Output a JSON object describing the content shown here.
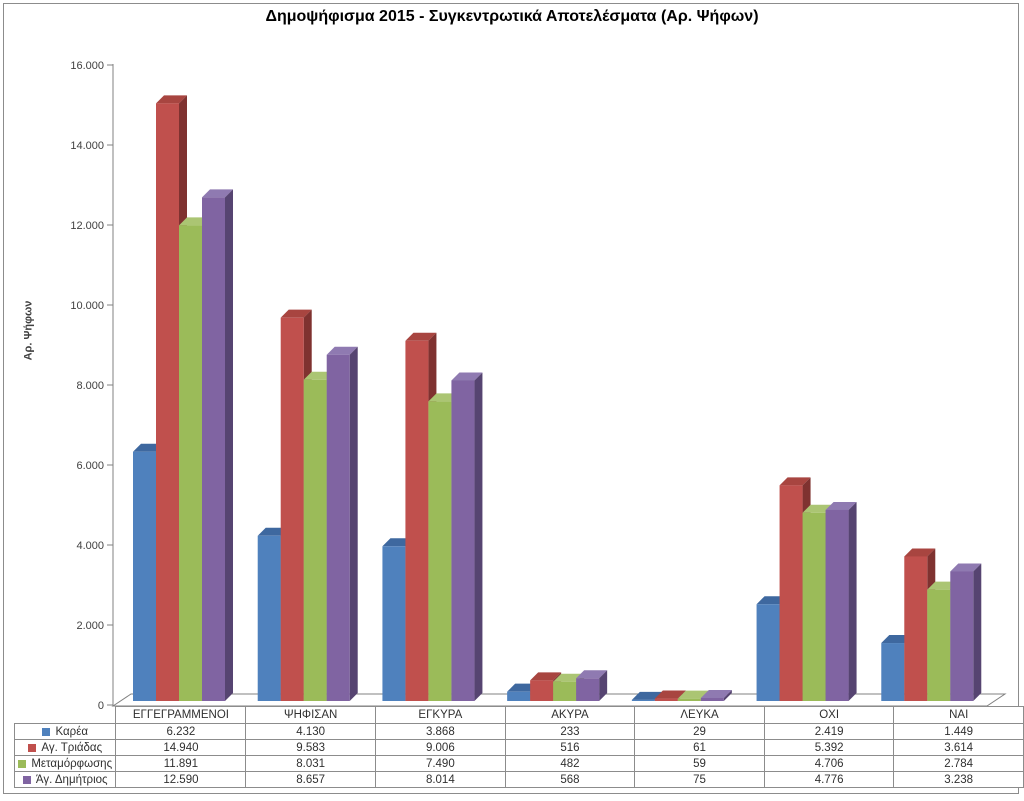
{
  "title": "Δημοψήφισμα 2015 - Συγκεντρωτικά Αποτελέσματα (Αρ. Ψήφων)",
  "chart_data": {
    "type": "bar",
    "style": "3d-clustered-column",
    "title": "Δημοψήφισμα 2015 - Συγκεντρωτικά Αποτελέσματα (Αρ. Ψήφων)",
    "xlabel": "",
    "ylabel": "Αρ. Ψήφων",
    "ylim": [
      0,
      16000
    ],
    "ytick_step": 2000,
    "ytick_labels": [
      "0",
      "2.000",
      "4.000",
      "6.000",
      "8.000",
      "10.000",
      "12.000",
      "14.000",
      "16.000"
    ],
    "grid": false,
    "legend_position": "data-table-left",
    "number_format": "thousands-dot",
    "categories": [
      "ΕΓΓΕΓΡΑΜΜΕΝΟΙ",
      "ΨΗΦΙΣΑΝ",
      "ΕΓΚΥΡΑ",
      "ΑΚΥΡΑ",
      "ΛΕΥΚΑ",
      "ΟΧΙ",
      "ΝΑΙ"
    ],
    "series": [
      {
        "name": "Καρέα",
        "color": "#4F81BD",
        "color_top": "#3E689F",
        "color_side": "#2E5380",
        "values": [
          6232,
          4130,
          3868,
          233,
          29,
          2419,
          1449
        ]
      },
      {
        "name": "Αγ. Τριάδας",
        "color": "#C0504D",
        "color_top": "#A84540",
        "color_side": "#7F3230",
        "values": [
          14940,
          9583,
          9006,
          516,
          61,
          5392,
          3614
        ]
      },
      {
        "name": "Μεταμόρφωσης",
        "color": "#9BBB59",
        "color_top": "#ABC573",
        "color_side": "#6E8A3B",
        "values": [
          11891,
          8031,
          7490,
          482,
          59,
          4706,
          2784
        ]
      },
      {
        "name": "Άγ. Δημήτριος",
        "color": "#8064A2",
        "color_top": "#8F7AB1",
        "color_side": "#564471",
        "values": [
          12590,
          8657,
          8014,
          568,
          75,
          4776,
          3238
        ]
      }
    ],
    "axis_color": "#808080",
    "text_color": "#404040"
  }
}
